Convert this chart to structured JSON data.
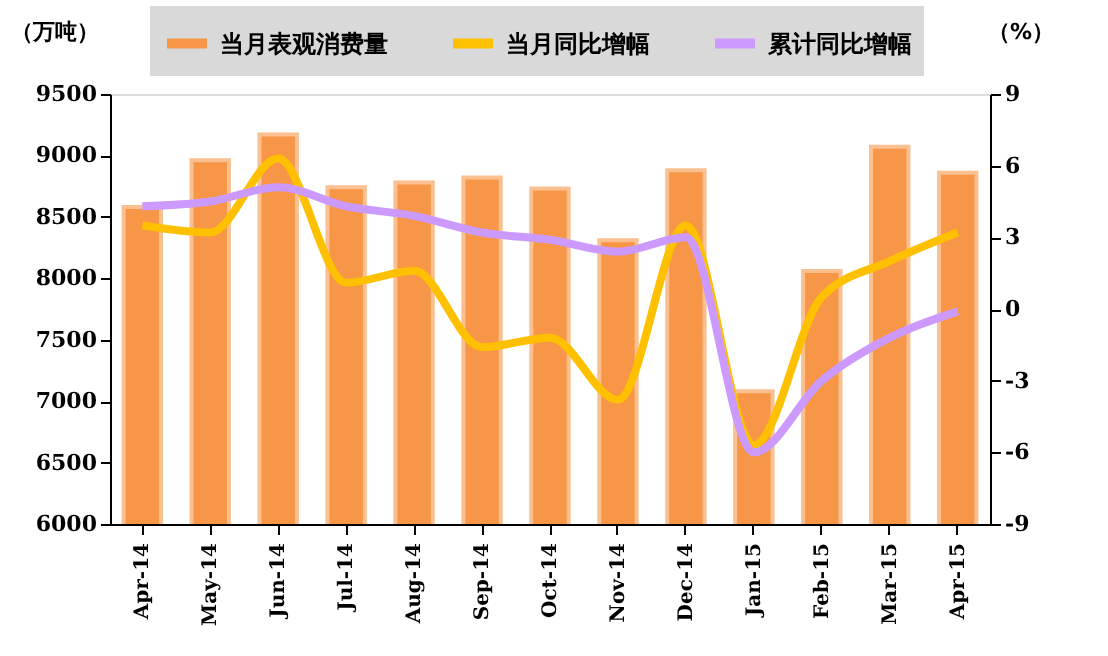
{
  "chart_data": {
    "type": "bar",
    "ylabel": "（万吨）",
    "y2label": "（%）",
    "categories": [
      "Apr-14",
      "May-14",
      "Jun-14",
      "Jul-14",
      "Aug-14",
      "Sep-14",
      "Oct-14",
      "Nov-14",
      "Dec-14",
      "Jan-15",
      "Feb-15",
      "Mar-15",
      "Apr-15"
    ],
    "series": [
      {
        "name": "当月表观消费量",
        "color": "#f79646",
        "values": [
          8580,
          8960,
          9170,
          8740,
          8780,
          8820,
          8730,
          8310,
          8880,
          7080,
          8060,
          9070,
          8860
        ]
      },
      {
        "name": "当月同比增幅",
        "type": "line",
        "axis": "y2",
        "color": "#ffc000",
        "values": [
          3.5,
          3.2,
          6.3,
          1.1,
          1.6,
          -1.6,
          -1.2,
          -3.8,
          3.5,
          -5.7,
          0.5,
          2.0,
          3.2
        ]
      },
      {
        "name": "累计同比增幅",
        "type": "line",
        "axis": "y2",
        "color": "#cc99ff",
        "values": [
          4.3,
          4.5,
          5.1,
          4.3,
          3.9,
          3.2,
          2.9,
          2.4,
          3.0,
          -6.0,
          -3.0,
          -1.2,
          -0.1
        ]
      }
    ],
    "ylim": [
      6000,
      9500
    ],
    "yticks": [
      6000,
      6500,
      7000,
      7500,
      8000,
      8500,
      9000,
      9500
    ],
    "y2lim": [
      -9,
      9
    ],
    "y2ticks": [
      -9,
      -6,
      -3,
      0,
      3,
      6,
      9
    ],
    "grid": false,
    "legend": "top",
    "line_style": "solid",
    "marker": "none"
  }
}
